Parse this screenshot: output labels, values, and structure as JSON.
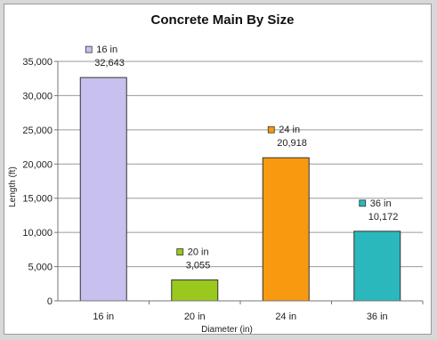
{
  "chart_data": {
    "type": "bar",
    "title": "Concrete Main By Size",
    "xlabel": "Diameter (in)",
    "ylabel": "Length (ft)",
    "ylim": [
      0,
      35000
    ],
    "yticks": [
      0,
      5000,
      10000,
      15000,
      20000,
      25000,
      30000,
      35000
    ],
    "ytick_labels": [
      "0",
      "5,000",
      "10,000",
      "15,000",
      "20,000",
      "25,000",
      "30,000",
      "35,000"
    ],
    "grid": true,
    "categories": [
      "16 in",
      "20 in",
      "24 in",
      "36 in"
    ],
    "values": [
      32643,
      3055,
      20918,
      10172
    ],
    "value_labels": [
      "32,643",
      "3,055",
      "20,918",
      "10,172"
    ],
    "colors": [
      "#c8c0ee",
      "#9ac81e",
      "#f79a10",
      "#2ab8bc"
    ]
  }
}
